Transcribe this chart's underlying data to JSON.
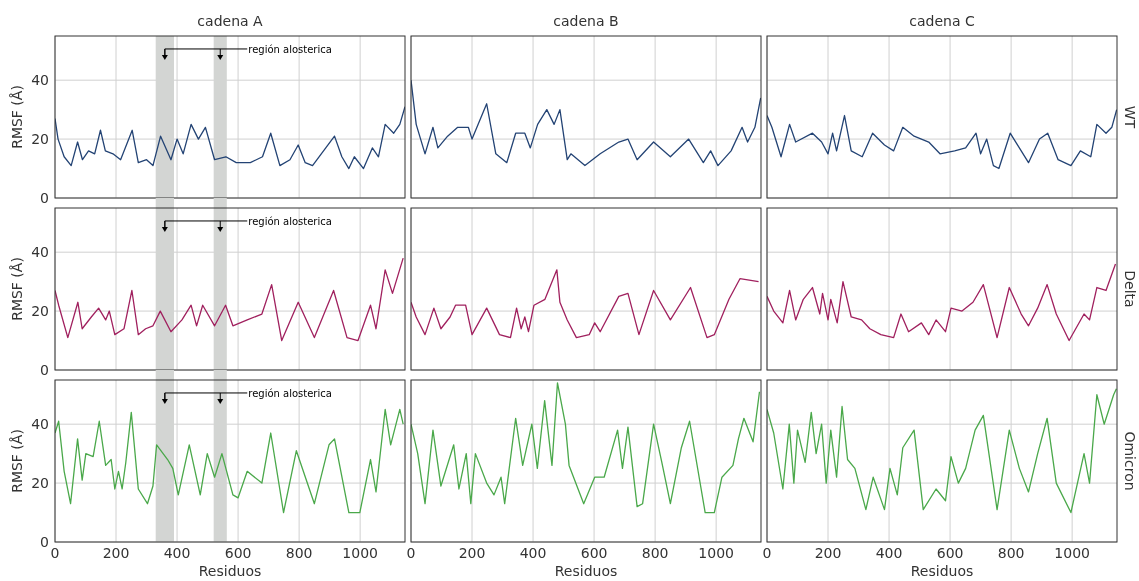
{
  "chart_data": [
    {
      "type": "line",
      "title": "cadena A",
      "ylabel": "RMSF (Å)",
      "xlim": [
        0,
        1147
      ],
      "ylim": [
        0,
        55
      ],
      "xticks": [
        0,
        200,
        400,
        600,
        800,
        1000
      ],
      "yticks": [
        0,
        20,
        40
      ],
      "grid": true,
      "tick_labels": "y",
      "bands": [
        {
          "axis": "x",
          "from": 330,
          "to": 390,
          "color": "#d3d5d3"
        },
        {
          "axis": "x",
          "from": 520,
          "to": 563,
          "color": "#d3d5d3"
        }
      ],
      "annotations": [
        "región alosterica"
      ],
      "series": [
        {
          "color": "#234374",
          "x": [
            0,
            10,
            30,
            53,
            74,
            90,
            110,
            130,
            149,
            165,
            190,
            215,
            253,
            273,
            300,
            321,
            346,
            380,
            400,
            420,
            446,
            470,
            493,
            523,
            560,
            594,
            640,
            680,
            707,
            737,
            770,
            797,
            820,
            844,
            880,
            916,
            940,
            963,
            981,
            1011,
            1040,
            1060,
            1082,
            1110,
            1130,
            1147
          ],
          "values": [
            27,
            20,
            14,
            11,
            19,
            13,
            16,
            15,
            23,
            16,
            15,
            13,
            23,
            12,
            13,
            11,
            21,
            13,
            20,
            15,
            25,
            20,
            24,
            13,
            14,
            12,
            12,
            14,
            22,
            11,
            13,
            18,
            12,
            11,
            16,
            21,
            14,
            10,
            14,
            10,
            17,
            14,
            25,
            22,
            25,
            31
          ]
        }
      ]
    },
    {
      "type": "line",
      "title": "cadena B",
      "xlim": [
        0,
        1147
      ],
      "ylim": [
        0,
        55
      ],
      "xticks": [
        0,
        200,
        400,
        600,
        800,
        1000
      ],
      "yticks": [
        0,
        20,
        40
      ],
      "grid": true,
      "tick_labels": false,
      "series": [
        {
          "color": "#234374",
          "x": [
            0,
            17,
            46,
            72,
            88,
            120,
            153,
            188,
            200,
            248,
            278,
            314,
            343,
            373,
            391,
            415,
            445,
            469,
            488,
            512,
            524,
            570,
            620,
            681,
            711,
            741,
            795,
            850,
            910,
            958,
            982,
            1006,
            1049,
            1085,
            1103,
            1127,
            1146
          ],
          "values": [
            40,
            25,
            15,
            24,
            17,
            21,
            24,
            24,
            20,
            32,
            15,
            12,
            22,
            22,
            17,
            25,
            30,
            25,
            30,
            13,
            15,
            11,
            15,
            19,
            20,
            13,
            19,
            14,
            20,
            12,
            16,
            11,
            16,
            24,
            19,
            24,
            34
          ]
        }
      ]
    },
    {
      "type": "line",
      "title": "cadena C",
      "y2label": "WT",
      "xlim": [
        0,
        1147
      ],
      "ylim": [
        0,
        55
      ],
      "xticks": [
        0,
        200,
        400,
        600,
        800,
        1000
      ],
      "yticks": [
        0,
        20,
        40
      ],
      "grid": true,
      "tick_labels": false,
      "series": [
        {
          "color": "#234374",
          "x": [
            0,
            16,
            46,
            74,
            94,
            149,
            179,
            200,
            215,
            228,
            254,
            276,
            312,
            346,
            385,
            415,
            445,
            482,
            530,
            567,
            615,
            651,
            685,
            700,
            720,
            742,
            760,
            797,
            827,
            857,
            893,
            920,
            954,
            996,
            1027,
            1061,
            1081,
            1111,
            1130,
            1146
          ],
          "values": [
            28,
            24,
            14,
            25,
            19,
            22,
            19,
            15,
            22,
            16,
            28,
            16,
            14,
            22,
            18,
            16,
            24,
            21,
            19,
            15,
            16,
            17,
            22,
            15,
            20,
            11,
            10,
            22,
            17,
            12,
            20,
            22,
            13,
            11,
            16,
            14,
            25,
            22,
            24,
            30
          ]
        }
      ]
    },
    {
      "type": "line",
      "ylabel": "RMSF (Å)",
      "xlim": [
        0,
        1147
      ],
      "ylim": [
        0,
        55
      ],
      "xticks": [
        0,
        200,
        400,
        600,
        800,
        1000
      ],
      "yticks": [
        0,
        20,
        40
      ],
      "grid": true,
      "tick_labels": "y",
      "bands": [
        {
          "axis": "x",
          "from": 330,
          "to": 390,
          "color": "#d3d5d3"
        },
        {
          "axis": "x",
          "from": 520,
          "to": 563,
          "color": "#d3d5d3"
        }
      ],
      "annotations": [
        "región alosterica"
      ],
      "series": [
        {
          "color": "#a0205e",
          "x": [
            0,
            12,
            42,
            75,
            89,
            119,
            143,
            166,
            178,
            196,
            226,
            252,
            273,
            297,
            321,
            345,
            380,
            416,
            446,
            464,
            484,
            523,
            559,
            583,
            630,
            678,
            710,
            743,
            797,
            850,
            913,
            957,
            993,
            1034,
            1052,
            1082,
            1106,
            1141
          ],
          "values": [
            27,
            22,
            11,
            23,
            14,
            18,
            21,
            17,
            20,
            12,
            14,
            27,
            12,
            14,
            15,
            20,
            13,
            17,
            22,
            15,
            22,
            15,
            22,
            15,
            17,
            19,
            29,
            10,
            23,
            11,
            27,
            11,
            10,
            22,
            14,
            34,
            26,
            38
          ]
        }
      ]
    },
    {
      "type": "line",
      "xlim": [
        0,
        1147
      ],
      "ylim": [
        0,
        55
      ],
      "xticks": [
        0,
        200,
        400,
        600,
        800,
        1000
      ],
      "yticks": [
        0,
        20,
        40
      ],
      "grid": true,
      "tick_labels": false,
      "series": [
        {
          "color": "#a0205e",
          "x": [
            0,
            17,
            46,
            75,
            98,
            128,
            146,
            179,
            200,
            248,
            290,
            326,
            346,
            361,
            373,
            385,
            403,
            439,
            478,
            488,
            512,
            542,
            584,
            602,
            620,
            681,
            711,
            747,
            795,
            850,
            916,
            970,
            994,
            1042,
            1078,
            1139
          ],
          "values": [
            23,
            18,
            12,
            21,
            14,
            18,
            22,
            22,
            12,
            21,
            12,
            11,
            21,
            14,
            18,
            13,
            22,
            24,
            34,
            23,
            17,
            11,
            12,
            16,
            13,
            25,
            26,
            12,
            27,
            17,
            28,
            11,
            12,
            24,
            31,
            30
          ]
        }
      ]
    },
    {
      "type": "line",
      "y2label": "Delta",
      "xlim": [
        0,
        1147
      ],
      "ylim": [
        0,
        55
      ],
      "xticks": [
        0,
        200,
        400,
        600,
        800,
        1000
      ],
      "yticks": [
        0,
        20,
        40
      ],
      "grid": true,
      "tick_labels": false,
      "series": [
        {
          "color": "#a0205e",
          "x": [
            0,
            22,
            52,
            74,
            94,
            119,
            149,
            173,
            182,
            200,
            209,
            230,
            249,
            276,
            310,
            337,
            373,
            415,
            439,
            464,
            506,
            530,
            554,
            585,
            603,
            639,
            675,
            709,
            754,
            794,
            833,
            857,
            887,
            918,
            948,
            990,
            1039,
            1057,
            1081,
            1111,
            1142
          ],
          "values": [
            25,
            20,
            16,
            27,
            17,
            24,
            28,
            19,
            26,
            17,
            24,
            16,
            30,
            18,
            17,
            14,
            12,
            11,
            19,
            13,
            16,
            12,
            17,
            13,
            21,
            20,
            23,
            29,
            11,
            28,
            19,
            15,
            21,
            29,
            19,
            10,
            19,
            17,
            28,
            27,
            36
          ]
        }
      ]
    },
    {
      "type": "line",
      "ylabel": "RMSF (Å)",
      "xlabel": "Residuos",
      "xlim": [
        0,
        1147
      ],
      "ylim": [
        0,
        55
      ],
      "xticks": [
        0,
        200,
        400,
        600,
        800,
        1000
      ],
      "yticks": [
        0,
        20,
        40
      ],
      "grid": true,
      "bands": [
        {
          "axis": "x",
          "from": 330,
          "to": 390,
          "color": "#d3d5d3"
        },
        {
          "axis": "x",
          "from": 520,
          "to": 563,
          "color": "#d3d5d3"
        }
      ],
      "annotations": [
        "región alosterica"
      ],
      "series": [
        {
          "color": "#4aa84a",
          "x": [
            0,
            12,
            30,
            51,
            74,
            89,
            101,
            125,
            145,
            166,
            184,
            196,
            208,
            220,
            232,
            250,
            273,
            303,
            321,
            333,
            369,
            386,
            404,
            440,
            476,
            499,
            523,
            547,
            583,
            600,
            630,
            678,
            707,
            749,
            791,
            850,
            898,
            916,
            963,
            999,
            1034,
            1052,
            1082,
            1100,
            1130,
            1141
          ],
          "values": [
            37,
            41,
            24,
            13,
            35,
            21,
            30,
            29,
            41,
            26,
            28,
            18,
            24,
            18,
            27,
            44,
            18,
            13,
            19,
            33,
            28,
            25,
            16,
            33,
            16,
            30,
            22,
            30,
            16,
            15,
            24,
            20,
            37,
            10,
            31,
            13,
            33,
            35,
            10,
            10,
            28,
            17,
            45,
            33,
            45,
            40
          ]
        }
      ]
    },
    {
      "type": "line",
      "xlabel": "Residuos",
      "xlim": [
        0,
        1147
      ],
      "ylim": [
        0,
        55
      ],
      "xticks": [
        0,
        200,
        400,
        600,
        800,
        1000
      ],
      "yticks": [
        0,
        20,
        40
      ],
      "grid": true,
      "tick_labels": "x",
      "series": [
        {
          "color": "#4aa84a",
          "x": [
            0,
            22,
            46,
            72,
            98,
            140,
            157,
            181,
            196,
            211,
            248,
            272,
            295,
            307,
            343,
            366,
            396,
            414,
            438,
            462,
            480,
            506,
            518,
            566,
            602,
            633,
            677,
            693,
            711,
            741,
            759,
            795,
            822,
            850,
            886,
            913,
            964,
            994,
            1019,
            1055,
            1073,
            1091,
            1121,
            1142
          ],
          "values": [
            40,
            30,
            13,
            38,
            19,
            33,
            18,
            30,
            13,
            30,
            20,
            16,
            22,
            13,
            42,
            26,
            40,
            25,
            48,
            26,
            54,
            40,
            26,
            13,
            22,
            22,
            38,
            25,
            39,
            12,
            13,
            40,
            27,
            13,
            32,
            41,
            10,
            10,
            22,
            26,
            35,
            42,
            34,
            51
          ]
        }
      ]
    },
    {
      "type": "line",
      "xlabel": "Residuos",
      "y2label": "Omicron",
      "xlim": [
        0,
        1147
      ],
      "ylim": [
        0,
        55
      ],
      "xticks": [
        0,
        200,
        400,
        600,
        800,
        1000
      ],
      "yticks": [
        0,
        20,
        40
      ],
      "grid": true,
      "tick_labels": "x",
      "series": [
        {
          "color": "#4aa84a",
          "x": [
            0,
            22,
            52,
            73,
            88,
            100,
            125,
            145,
            161,
            179,
            194,
            209,
            228,
            246,
            264,
            288,
            324,
            348,
            385,
            403,
            427,
            445,
            482,
            512,
            554,
            585,
            603,
            627,
            651,
            682,
            709,
            754,
            794,
            827,
            857,
            887,
            918,
            948,
            996,
            1039,
            1057,
            1081,
            1105,
            1136,
            1145
          ],
          "values": [
            45,
            37,
            18,
            40,
            20,
            38,
            27,
            44,
            30,
            40,
            20,
            38,
            22,
            46,
            28,
            25,
            11,
            22,
            11,
            25,
            16,
            32,
            38,
            11,
            18,
            14,
            29,
            20,
            25,
            38,
            43,
            11,
            38,
            25,
            17,
            30,
            42,
            20,
            10,
            30,
            20,
            50,
            40,
            50,
            52
          ]
        }
      ]
    }
  ]
}
